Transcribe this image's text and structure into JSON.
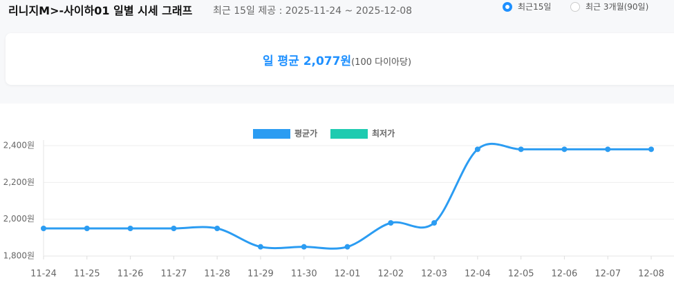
{
  "header": {
    "title": "리니지M>-사이하01 일별 시세 그래프",
    "subtitle": "최근 15일 제공 : 2025-11-24 ~ 2025-12-08",
    "options": [
      "최근15일",
      "최근 3개월(90일)"
    ]
  },
  "summary": {
    "label": "일 평균 2,077원",
    "unit": "(100 다이아당)"
  },
  "chart_data": {
    "type": "line",
    "categories": [
      "11-24",
      "11-25",
      "11-26",
      "11-27",
      "11-28",
      "11-29",
      "11-30",
      "12-01",
      "12-02",
      "12-03",
      "12-04",
      "12-05",
      "12-06",
      "12-07",
      "12-08"
    ],
    "series": [
      {
        "name": "평균가",
        "color": "#2b9cf2",
        "values": [
          1950,
          1950,
          1950,
          1950,
          1950,
          1850,
          1850,
          1850,
          1980,
          1980,
          2380,
          2380,
          2380,
          2380,
          2380
        ]
      },
      {
        "name": "최저가",
        "color": "#1ecbb0"
      }
    ],
    "ylim": [
      1800,
      2400
    ],
    "yticks": [
      {
        "value": 1800,
        "label": "1,800원"
      },
      {
        "value": 2000,
        "label": "2,000원"
      },
      {
        "value": 2200,
        "label": "2,200원"
      },
      {
        "value": 2400,
        "label": "2,400원"
      }
    ],
    "grid": true
  }
}
